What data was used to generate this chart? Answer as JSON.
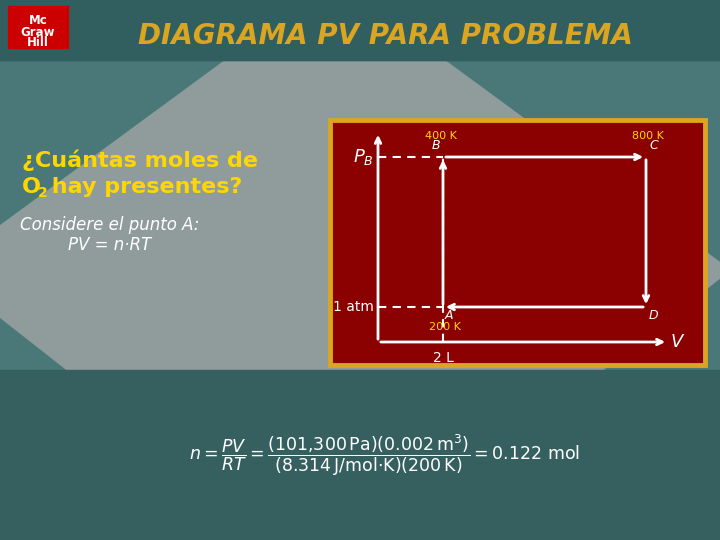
{
  "title": "DIAGRAMA PV PARA PROBLEMA",
  "title_color": "#DAA520",
  "bg_teal": "#4a7878",
  "bg_teal_dark": "#2d6060",
  "bg_diamond": "#8a9898",
  "left_text_line1": "¿Cuántas moles de",
  "left_text_line2a": "O",
  "left_text_line2sub": "2",
  "left_text_line2b": " hay presentes?",
  "left_text_color": "#FFD700",
  "italic_text_color": "#FFFFFF",
  "italic_line1": "Considere el punto A:",
  "italic_line2": "PV = n⸖RT",
  "box_bg": "#8B0000",
  "box_border": "#DAA520",
  "label_white": "#FFFFFF",
  "label_yellow": "#FFD700",
  "logo_bg": "#CC0000",
  "logo_color": "#FFFFFF",
  "formula_color": "#FFFFFF",
  "bottom_bg": "#3a6565"
}
